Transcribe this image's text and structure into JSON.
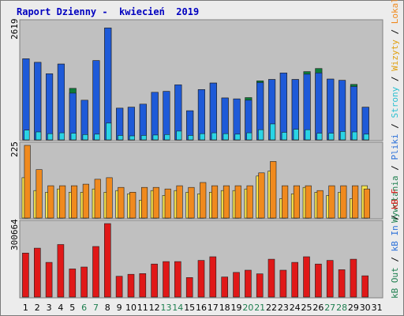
{
  "title": "Raport Dzienny -  kwiecień  2019",
  "colors": {
    "panel_bg": "#c0c0c0",
    "frame_bg": "#ececec",
    "border": "#808080",
    "title": "#0000c0",
    "weekday": "#000000",
    "weekend": "#1e7f4f",
    "visits": "#1e6a2e",
    "pages": "#1e5ad8",
    "files": "#2ad4e6",
    "hits_dark": "#0d7a3a",
    "kbin": "#f7e24a",
    "kbout": "#f08a1e",
    "sites": "#f08a1e",
    "kbf": "#e01818"
  },
  "right_legend": {
    "top": [
      {
        "text": "Wywołania",
        "color": "#1e7f4f"
      },
      {
        "text": " / ",
        "color": "#000000"
      },
      {
        "text": "Pliki",
        "color": "#2a6fd8"
      },
      {
        "text": " / ",
        "color": "#000000"
      },
      {
        "text": "Strony",
        "color": "#2abfd0"
      },
      {
        "text": " / ",
        "color": "#000000"
      },
      {
        "text": "Wizyty",
        "color": "#e0a010"
      },
      {
        "text": " / ",
        "color": "#000000"
      },
      {
        "text": "Lokalizacje",
        "color": "#f08a1e"
      }
    ],
    "bottom": [
      {
        "text": "kB Out",
        "color": "#1e7f4f"
      },
      {
        "text": " / ",
        "color": "#000000"
      },
      {
        "text": "kB In",
        "color": "#2a6fd8"
      },
      {
        "text": " / ",
        "color": "#000000"
      },
      {
        "text": "kB F",
        "color": "#e01818"
      }
    ]
  },
  "chart_data": {
    "type": "bar",
    "categories": [
      "1",
      "2",
      "3",
      "4",
      "5",
      "6",
      "7",
      "8",
      "9",
      "10",
      "11",
      "12",
      "13",
      "14",
      "15",
      "16",
      "17",
      "18",
      "19",
      "20",
      "21",
      "22",
      "23",
      "24",
      "25",
      "26",
      "27",
      "28",
      "29",
      "30",
      "31"
    ],
    "weekend_days": [
      "6",
      "7",
      "13",
      "14",
      "20",
      "21",
      "27",
      "28"
    ],
    "panels": [
      {
        "name": "hits-files-pages",
        "ymax_label": "2619",
        "ylim": [
          0,
          2619
        ],
        "series": [
          {
            "name": "Wywołania",
            "color": "#0d7a3a",
            "values": [
              1840,
              1760,
              1500,
              1720,
              1170,
              900,
              1800,
              2540,
              720,
              740,
              810,
              1080,
              1100,
              1250,
              660,
              1140,
              1290,
              950,
              930,
              960,
              1340,
              1370,
              1520,
              1370,
              1550,
              1620,
              1380,
              1350,
              1260,
              740,
              null
            ]
          },
          {
            "name": "Pliki",
            "color": "#1e5ad8",
            "values": [
              1840,
              1760,
              1500,
              1720,
              1060,
              900,
              1800,
              2540,
              720,
              740,
              810,
              1080,
              1100,
              1250,
              660,
              1140,
              1290,
              950,
              930,
              900,
              1300,
              1370,
              1520,
              1370,
              1490,
              1520,
              1380,
              1350,
              1210,
              740,
              null
            ]
          },
          {
            "name": "Strony",
            "color": "#2ad4e6",
            "values": [
              220,
              180,
              140,
              160,
              150,
              120,
              130,
              380,
              100,
              90,
              100,
              110,
              120,
              200,
              100,
              140,
              160,
              140,
              130,
              160,
              230,
              360,
              170,
              240,
              230,
              150,
              150,
              190,
              180,
              130,
              null
            ]
          }
        ]
      },
      {
        "name": "visits-sites",
        "ymax_label": "225",
        "ylim": [
          0,
          225
        ],
        "series": [
          {
            "name": "Wizyty",
            "color": "#f7e24a",
            "values": [
              125,
              85,
              80,
              90,
              80,
              80,
              90,
              80,
              85,
              75,
              55,
              85,
              70,
              85,
              80,
              75,
              80,
              85,
              85,
              90,
              130,
              145,
              60,
              75,
              95,
              80,
              70,
              80,
              60,
              100,
              null
            ]
          },
          {
            "name": "Lokalizacje",
            "color": "#f08a1e",
            "values": [
              225,
              150,
              100,
              100,
              100,
              105,
              120,
              125,
              95,
              80,
              95,
              95,
              90,
              100,
              95,
              110,
              100,
              100,
              100,
              100,
              140,
              175,
              100,
              100,
              100,
              85,
              100,
              100,
              100,
              90,
              null
            ]
          }
        ]
      },
      {
        "name": "kbytes",
        "ymax_label": "300664",
        "ylim": [
          0,
          300664
        ],
        "series": [
          {
            "name": "kB F",
            "color": "#e01818",
            "values": [
              180000,
              200000,
              142000,
              215000,
              115000,
              123000,
              207000,
              300664,
              85000,
              93000,
              96000,
              135000,
              145000,
              145000,
              80000,
              150000,
              165000,
              82000,
              101000,
              110000,
              95000,
              155000,
              110000,
              142000,
              165000,
              135000,
              150000,
              112000,
              155000,
              87000,
              null
            ]
          }
        ]
      }
    ]
  }
}
